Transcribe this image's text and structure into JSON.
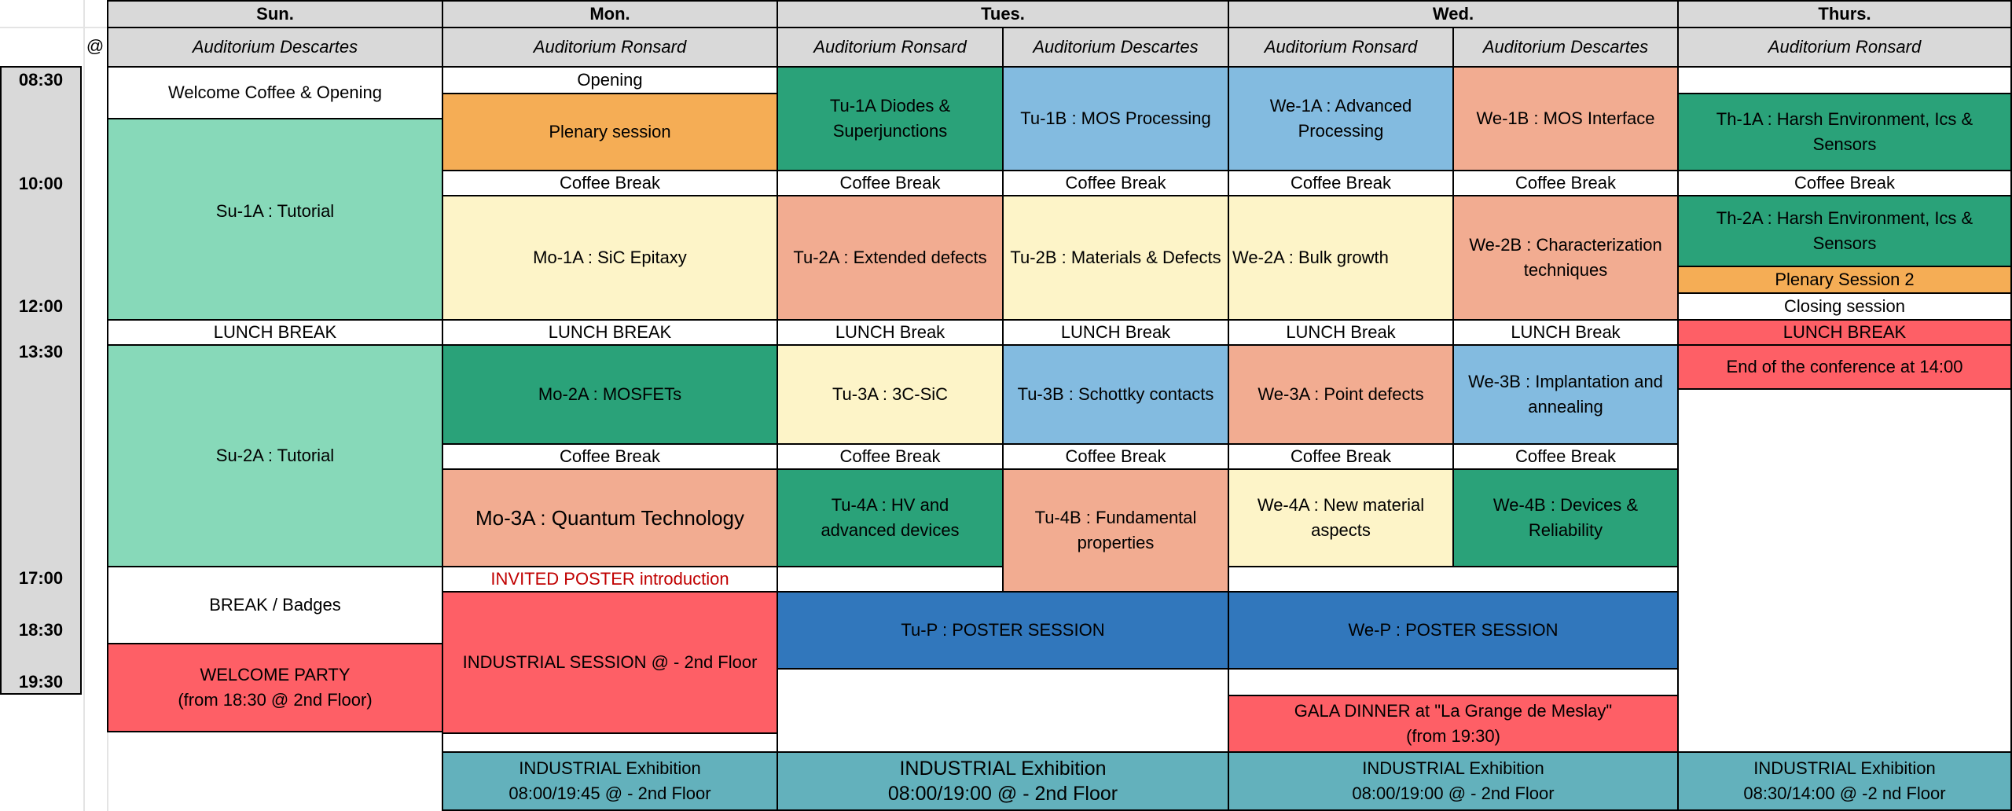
{
  "days": {
    "sun": "Sun.",
    "mon": "Mon.",
    "tue": "Tues.",
    "wed": "Wed.",
    "thu": "Thurs."
  },
  "at_symbol": "@",
  "rooms": {
    "descartes": "Auditorium Descartes",
    "ronsard": "Auditorium Ronsard"
  },
  "times": [
    "08:30",
    "10:00",
    "12:00",
    "13:30",
    "17:00",
    "18:30",
    "19:30"
  ],
  "sun": {
    "welcome": "Welcome Coffee & Opening",
    "su1a": "Su-1A : Tutorial",
    "lunch": "LUNCH BREAK",
    "su2a": "Su-2A : Tutorial",
    "break": "BREAK / Badges",
    "party_line1": "WELCOME PARTY",
    "party_line2": "(from 18:30 @ 2nd Floor)"
  },
  "mon": {
    "opening": "Opening",
    "plenary": "Plenary session",
    "coffee1": "Coffee Break",
    "mo1a": "Mo-1A : SiC Epitaxy",
    "lunch": "LUNCH BREAK",
    "mo2a": "Mo-2A : MOSFETs",
    "coffee2": "Coffee Break",
    "mo3a": "Mo-3A : Quantum Technology",
    "invited": "INVITED POSTER introduction",
    "industrial": "INDUSTRIAL SESSION @ - 2nd Floor",
    "exhibit_line1": "INDUSTRIAL Exhibition",
    "exhibit_line2": "08:00/19:45 @ - 2nd Floor"
  },
  "tue": {
    "tu1a": "Tu-1A Diodes & Superjunctions",
    "tu1b": "Tu-1B : MOS Processing",
    "coffee_a1": "Coffee Break",
    "coffee_b1": "Coffee Break",
    "tu2a": "Tu-2A : Extended defects",
    "tu2b": "Tu-2B : Materials & Defects",
    "lunch_a": "LUNCH Break",
    "lunch_b": "LUNCH Break",
    "tu3a": "Tu-3A : 3C-SiC",
    "tu3b": "Tu-3B : Schottky contacts",
    "coffee_a2": "Coffee Break",
    "coffee_b2": "Coffee Break",
    "tu4a": "Tu-4A : HV and advanced devices",
    "tu4b": "Tu-4B : Fundamental properties",
    "poster": "Tu-P : POSTER SESSION",
    "exhibit_line1": "INDUSTRIAL  Exhibition",
    "exhibit_line2": "08:00/19:00 @ - 2nd Floor"
  },
  "wed": {
    "we1a": "We-1A : Advanced Processing",
    "we1b": "We-1B : MOS Interface",
    "coffee_a1": "Coffee Break",
    "coffee_b1": "Coffee Break",
    "we2a": "We-2A : Bulk growth",
    "we2b": "We-2B : Characterization techniques",
    "lunch_a": "LUNCH Break",
    "lunch_b": "LUNCH Break",
    "we3a": "We-3A : Point defects",
    "we3b": "We-3B : Implantation and annealing",
    "coffee_a2": "Coffee Break",
    "coffee_b2": "Coffee Break",
    "we4a": "We-4A : New material aspects",
    "we4b": "We-4B : Devices & Reliability",
    "poster": "We-P : POSTER SESSION",
    "gala_line1": "GALA DINNER at \"La Grange de Meslay\"",
    "gala_line2": "(from 19:30)",
    "exhibit_line1": "INDUSTRIAL  Exhibition",
    "exhibit_line2": "08:00/19:00 @ - 2nd Floor"
  },
  "thu": {
    "th1a": "Th-1A : Harsh Environment, Ics & Sensors",
    "coffee": "Coffee Break",
    "th2a": "Th-2A : Harsh Environment, Ics & Sensors",
    "plenary2": "Plenary Session 2",
    "closing": "Closing session",
    "lunch": "LUNCH BREAK",
    "end": "End of the conference at 14:00",
    "exhibit_line1": "INDUSTRIAL  Exhibition",
    "exhibit_line2": "08:30/14:00 @ -2 nd Floor"
  },
  "colors": {
    "green": "#2aa279",
    "mint": "#87d9b9",
    "orange": "#f5ad55",
    "salmon": "#f2ac91",
    "yellow": "#fdf4c8",
    "blue": "#83bbe0",
    "red": "#fe5f66",
    "dark_blue": "#3177bc",
    "teal": "#63b1bc",
    "header_gray": "#d9d9d9",
    "invited_red": "#c00000"
  }
}
